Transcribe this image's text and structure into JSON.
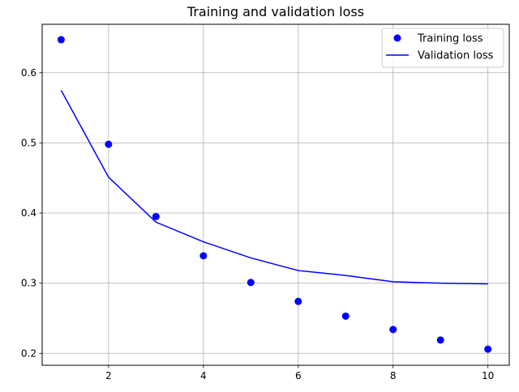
{
  "chart_data": {
    "type": "line",
    "title": "Training and validation loss",
    "xlabel": "",
    "ylabel": "",
    "x": [
      1,
      2,
      3,
      4,
      5,
      6,
      7,
      8,
      9,
      10
    ],
    "series": [
      {
        "name": "Training loss",
        "style": "markers",
        "color": "#0000ff",
        "values": [
          0.647,
          0.498,
          0.395,
          0.339,
          0.301,
          0.274,
          0.253,
          0.234,
          0.219,
          0.206
        ]
      },
      {
        "name": "Validation loss",
        "style": "line",
        "color": "#0000ff",
        "values": [
          0.575,
          0.451,
          0.387,
          0.359,
          0.336,
          0.318,
          0.311,
          0.302,
          0.3,
          0.299
        ]
      }
    ],
    "xlim": [
      0.6,
      10.45
    ],
    "ylim": [
      0.183,
      0.669
    ],
    "xticks": [
      2,
      4,
      6,
      8,
      10
    ],
    "xtick_labels": [
      "2",
      "4",
      "6",
      "8",
      "10"
    ],
    "yticks": [
      0.2,
      0.3,
      0.4,
      0.5,
      0.6
    ],
    "ytick_labels": [
      "0.2",
      "0.3",
      "0.4",
      "0.5",
      "0.6"
    ],
    "grid": true,
    "legend_position": "top-right"
  }
}
